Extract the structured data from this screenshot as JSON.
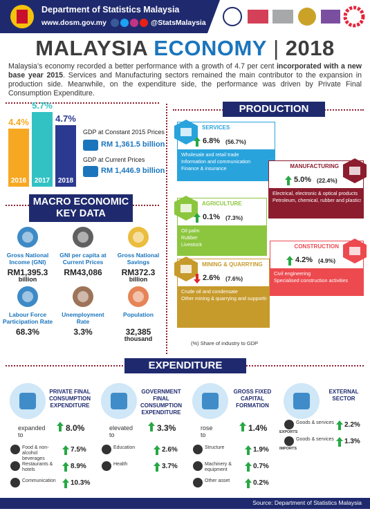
{
  "header": {
    "org": "Department of Statistics Malaysia",
    "web": "www.dosm.gov.my",
    "social": "@StatsMalaysia"
  },
  "title": {
    "main": "MALAYSIA",
    "accent": "ECONOMY",
    "year": "2018"
  },
  "intro": [
    {
      "text": "Malaysia’s economy recorded a better performance with a growth of 4.7 per cent ",
      "bold": false
    },
    {
      "text": "incorporated with a new base year 2015",
      "bold": true
    },
    {
      "text": ". Services and Manufacturing sectors remained the main contributor to the expansion in production side. Meanwhile, on the expenditure side, the performance was driven by Private Final Consumption Expenditure.",
      "bold": false
    }
  ],
  "growth": {
    "categories": [
      "2016",
      "2017",
      "2018"
    ],
    "values": [
      4.4,
      5.7,
      4.7
    ],
    "value_labels": [
      "4.4%",
      "5.7%",
      "4.7%"
    ],
    "colors": [
      "#f7a823",
      "#33c2c4",
      "#2b3990"
    ]
  },
  "gdp": {
    "constant_label": "GDP at Constant 2015 Prices",
    "constant_value": "RM 1,361.5 billion",
    "current_label": "GDP at Current Prices",
    "current_value": "RM 1,446.9 billion"
  },
  "macro": {
    "title": "MACRO ECONOMIC KEY DATA",
    "items": [
      {
        "label": "Gross National Income (GNI)",
        "value": "RM1,395.3",
        "unit": "billion"
      },
      {
        "label": "GNI per capita at Current Prices",
        "value": "RM43,086"
      },
      {
        "label": "Gross National Savings",
        "value": "RM372.3",
        "unit": "billion"
      },
      {
        "label": "Labour Force Participation Rate",
        "value": "68.3%"
      },
      {
        "label": "Unemployment Rate",
        "value": "3.3%"
      },
      {
        "label": "Population",
        "value": "32,385",
        "unit": "thousand"
      }
    ]
  },
  "production": {
    "title": "PRODUCTION",
    "note": "(%) Share of industry to GDP",
    "sectors": [
      {
        "name": "SERVICES",
        "growth": "6.8%",
        "share": "(56.7%)",
        "trend": "up",
        "color": "#29a3dc",
        "items": [
          "Wholesale and retail trade",
          "Information and communication",
          "Finance & insurance"
        ]
      },
      {
        "name": "MANUFACTURING",
        "growth": "5.0%",
        "share": "(22.4%)",
        "trend": "up",
        "color": "#8c1d2e",
        "items": [
          "Electrical, electronic & optical products",
          "Petroleum, chemical, rubber and plastics products"
        ]
      },
      {
        "name": "AGRICULTURE",
        "growth": "0.1%",
        "share": "(7.3%)",
        "trend": "up",
        "color": "#8cc63f",
        "items": [
          "Oil palm",
          "Rubber",
          "Livestock"
        ]
      },
      {
        "name": "CONSTRUCTION",
        "growth": "4.2%",
        "share": "(4.9%)",
        "trend": "up",
        "color": "#ec4a4f",
        "items": [
          "Civil engineering",
          "Specialised construction activities"
        ]
      },
      {
        "name": "MINING & QUARRYING",
        "growth": "2.6%",
        "share": "(7.6%)",
        "trend": "down",
        "color": "#c79a2c",
        "items": [
          "Crude oil and condensate",
          "Other mining & quarrying and supporting services"
        ]
      }
    ]
  },
  "expenditure": {
    "title": "EXPENDITURE",
    "columns": [
      {
        "title": "PRIVATE FINAL CONSUMPTION EXPENDITURE",
        "lead": "expanded to",
        "value": "8.0%",
        "items": [
          {
            "label": "Food & non-alcohol beverages",
            "value": "7.5%"
          },
          {
            "label": "Restaurants & hotels",
            "value": "8.9%"
          },
          {
            "label": "Communication",
            "value": "10.3%"
          }
        ]
      },
      {
        "title": "GOVERNMENT FINAL CONSUMPTION EXPENDITURE",
        "lead": "elevated to",
        "value": "3.3%",
        "items": [
          {
            "label": "Education",
            "value": "2.6%"
          },
          {
            "label": "Health",
            "value": "3.7%"
          }
        ]
      },
      {
        "title": "GROSS FIXED CAPITAL FORMATION",
        "lead": "rose to",
        "value": "1.4%",
        "items": [
          {
            "label": "Structure",
            "value": "1.9%"
          },
          {
            "label": "Machinery & equipment",
            "value": "0.7%"
          },
          {
            "label": "Other asset",
            "value": "0.2%"
          }
        ]
      },
      {
        "title": "EXTERNAL SECTOR",
        "items": [
          {
            "label": "Goods & services",
            "tag": "EXPORTS",
            "value": "2.2%"
          },
          {
            "label": "Goods & services",
            "tag": "IMPORTS",
            "value": "1.3%"
          }
        ]
      }
    ]
  },
  "footer": {
    "source": "Source: Department of Statistics Malaysia"
  }
}
